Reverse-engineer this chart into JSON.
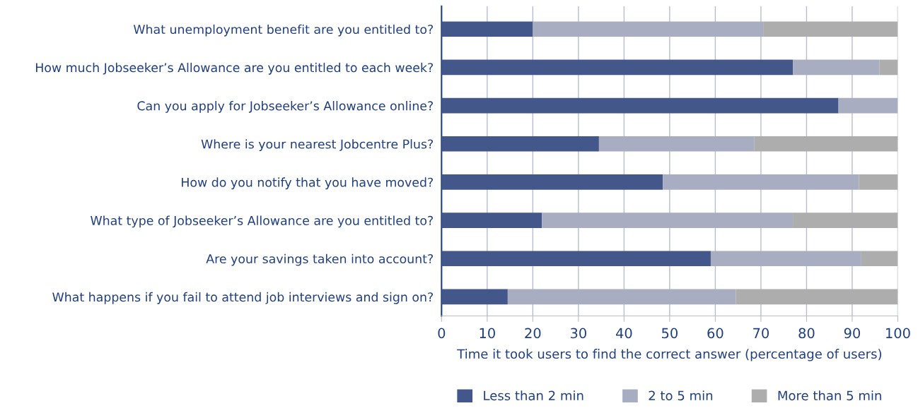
{
  "chart_data": {
    "type": "bar",
    "orientation": "horizontal",
    "stacked": true,
    "categories": [
      "What unemployment benefit are you entitled to?",
      "How much Jobseeker’s Allowance are you entitled to each week?",
      "Can you apply for Jobseeker’s Allowance online?",
      "Where is your nearest Jobcentre Plus?",
      "How do you notify that you have moved?",
      "What type of Jobseeker’s Allowance are you entitled to?",
      "Are your savings taken into account?",
      "What happens if you fail to attend job interviews and sign on?"
    ],
    "series": [
      {
        "name": "Less than 2 min",
        "color": "#43578a",
        "values": [
          20,
          77,
          87,
          34.5,
          48.5,
          22,
          59,
          14.5
        ]
      },
      {
        "name": "2 to 5 min",
        "color": "#a8adc2",
        "values": [
          50.5,
          19,
          13,
          34,
          43,
          55,
          33,
          50
        ]
      },
      {
        "name": "More than 5 min",
        "color": "#adadad",
        "values": [
          29.5,
          4,
          0,
          31.5,
          8.5,
          23,
          8,
          35.5
        ]
      }
    ],
    "xlabel": "Time it took users to find the correct answer (percentage of users)",
    "xlim": [
      0,
      100
    ],
    "xticks": [
      0,
      10,
      20,
      30,
      40,
      50,
      60,
      70,
      80,
      90,
      100
    ],
    "grid": "x",
    "legend": "bottom"
  }
}
